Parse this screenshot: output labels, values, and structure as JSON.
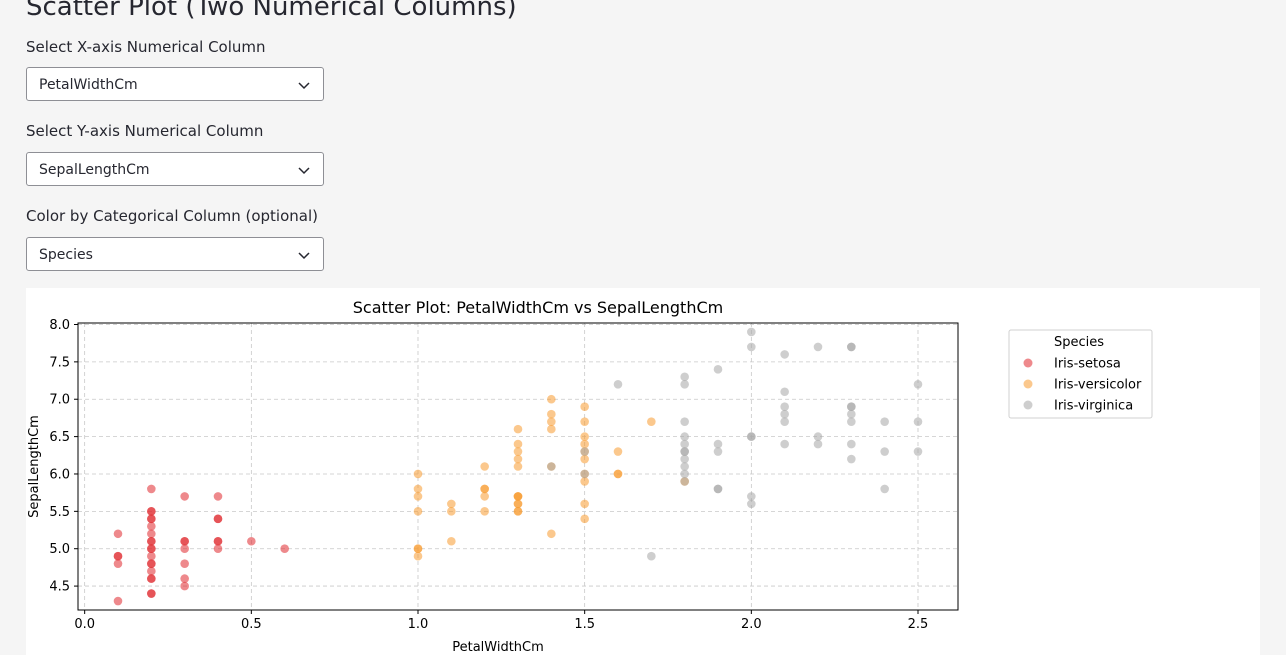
{
  "page": {
    "title": "Scatter Plot (Two Numerical Columns)"
  },
  "controls": {
    "x_select": {
      "label": "Select X-axis Numerical Column",
      "value": "PetalWidthCm"
    },
    "y_select": {
      "label": "Select Y-axis Numerical Column",
      "value": "SepalLengthCm"
    },
    "color_select": {
      "label": "Color by Categorical Column (optional)",
      "value": "Species"
    }
  },
  "icons": {
    "dropdown": "chevron-down-icon"
  },
  "chart_data": {
    "type": "scatter",
    "title": "Scatter Plot: PetalWidthCm vs SepalLengthCm",
    "xlabel": "PetalWidthCm",
    "ylabel": "SepalLengthCm",
    "xlim": [
      -0.02,
      2.62
    ],
    "ylim": [
      4.18,
      8.02
    ],
    "xticks": [
      "0.0",
      "0.5",
      "1.0",
      "1.5",
      "2.0",
      "2.5"
    ],
    "yticks": [
      "4.5",
      "5.0",
      "5.5",
      "6.0",
      "6.5",
      "7.0",
      "7.5",
      "8.0"
    ],
    "grid": true,
    "legend_title": "Species",
    "legend_position": "outside-right",
    "series": [
      {
        "name": "Iris-setosa",
        "color": "#e0282e",
        "points": [
          [
            0.1,
            5.2
          ],
          [
            0.1,
            4.9
          ],
          [
            0.1,
            4.9
          ],
          [
            0.1,
            4.8
          ],
          [
            0.1,
            4.3
          ],
          [
            0.2,
            5.8
          ],
          [
            0.2,
            5.5
          ],
          [
            0.2,
            5.5
          ],
          [
            0.2,
            5.4
          ],
          [
            0.2,
            5.4
          ],
          [
            0.2,
            5.3
          ],
          [
            0.2,
            5.2
          ],
          [
            0.2,
            5.1
          ],
          [
            0.2,
            5.1
          ],
          [
            0.2,
            5.0
          ],
          [
            0.2,
            5.0
          ],
          [
            0.2,
            4.9
          ],
          [
            0.2,
            4.8
          ],
          [
            0.2,
            4.8
          ],
          [
            0.2,
            4.7
          ],
          [
            0.2,
            4.6
          ],
          [
            0.2,
            4.6
          ],
          [
            0.2,
            4.4
          ],
          [
            0.2,
            4.4
          ],
          [
            0.3,
            5.7
          ],
          [
            0.3,
            5.1
          ],
          [
            0.3,
            5.1
          ],
          [
            0.3,
            5.0
          ],
          [
            0.3,
            4.8
          ],
          [
            0.3,
            4.6
          ],
          [
            0.3,
            4.5
          ],
          [
            0.4,
            5.7
          ],
          [
            0.4,
            5.4
          ],
          [
            0.4,
            5.4
          ],
          [
            0.4,
            5.1
          ],
          [
            0.4,
            5.1
          ],
          [
            0.4,
            5.0
          ],
          [
            0.5,
            5.1
          ],
          [
            0.6,
            5.0
          ]
        ]
      },
      {
        "name": "Iris-versicolor",
        "color": "#f79b30",
        "points": [
          [
            1.0,
            6.0
          ],
          [
            1.0,
            5.8
          ],
          [
            1.0,
            5.7
          ],
          [
            1.0,
            5.5
          ],
          [
            1.0,
            5.0
          ],
          [
            1.0,
            5.0
          ],
          [
            1.0,
            4.9
          ],
          [
            1.1,
            5.6
          ],
          [
            1.1,
            5.5
          ],
          [
            1.1,
            5.1
          ],
          [
            1.2,
            6.1
          ],
          [
            1.2,
            5.8
          ],
          [
            1.2,
            5.8
          ],
          [
            1.2,
            5.7
          ],
          [
            1.2,
            5.5
          ],
          [
            1.3,
            6.6
          ],
          [
            1.3,
            6.4
          ],
          [
            1.3,
            6.3
          ],
          [
            1.3,
            6.2
          ],
          [
            1.3,
            6.1
          ],
          [
            1.3,
            5.7
          ],
          [
            1.3,
            5.7
          ],
          [
            1.3,
            5.7
          ],
          [
            1.3,
            5.6
          ],
          [
            1.3,
            5.6
          ],
          [
            1.3,
            5.5
          ],
          [
            1.3,
            5.5
          ],
          [
            1.4,
            7.0
          ],
          [
            1.4,
            6.8
          ],
          [
            1.4,
            6.7
          ],
          [
            1.4,
            6.6
          ],
          [
            1.4,
            6.1
          ],
          [
            1.4,
            5.2
          ],
          [
            1.5,
            6.9
          ],
          [
            1.5,
            6.7
          ],
          [
            1.5,
            6.5
          ],
          [
            1.5,
            6.4
          ],
          [
            1.5,
            6.3
          ],
          [
            1.5,
            6.2
          ],
          [
            1.5,
            6.0
          ],
          [
            1.5,
            5.9
          ],
          [
            1.5,
            5.6
          ],
          [
            1.5,
            5.4
          ],
          [
            1.6,
            6.3
          ],
          [
            1.6,
            6.0
          ],
          [
            1.6,
            6.0
          ],
          [
            1.7,
            6.7
          ],
          [
            1.8,
            5.9
          ]
        ]
      },
      {
        "name": "Iris-virginica",
        "color": "#a6a6a6",
        "points": [
          [
            1.4,
            6.1
          ],
          [
            1.5,
            6.3
          ],
          [
            1.5,
            6.0
          ],
          [
            1.6,
            7.2
          ],
          [
            1.7,
            4.9
          ],
          [
            1.8,
            7.3
          ],
          [
            1.8,
            7.2
          ],
          [
            1.8,
            6.7
          ],
          [
            1.8,
            6.5
          ],
          [
            1.8,
            6.4
          ],
          [
            1.8,
            6.3
          ],
          [
            1.8,
            6.3
          ],
          [
            1.8,
            6.2
          ],
          [
            1.8,
            6.1
          ],
          [
            1.8,
            6.0
          ],
          [
            1.8,
            5.9
          ],
          [
            1.9,
            7.4
          ],
          [
            1.9,
            6.4
          ],
          [
            1.9,
            6.3
          ],
          [
            1.9,
            5.8
          ],
          [
            1.9,
            5.8
          ],
          [
            2.0,
            7.9
          ],
          [
            2.0,
            7.7
          ],
          [
            2.0,
            6.5
          ],
          [
            2.0,
            6.5
          ],
          [
            2.0,
            5.7
          ],
          [
            2.0,
            5.6
          ],
          [
            2.1,
            7.6
          ],
          [
            2.1,
            7.1
          ],
          [
            2.1,
            6.9
          ],
          [
            2.1,
            6.8
          ],
          [
            2.1,
            6.7
          ],
          [
            2.1,
            6.4
          ],
          [
            2.2,
            7.7
          ],
          [
            2.2,
            6.5
          ],
          [
            2.2,
            6.4
          ],
          [
            2.3,
            7.7
          ],
          [
            2.3,
            7.7
          ],
          [
            2.3,
            6.9
          ],
          [
            2.3,
            6.9
          ],
          [
            2.3,
            6.8
          ],
          [
            2.3,
            6.7
          ],
          [
            2.3,
            6.4
          ],
          [
            2.3,
            6.2
          ],
          [
            2.4,
            6.7
          ],
          [
            2.4,
            6.3
          ],
          [
            2.4,
            5.8
          ],
          [
            2.5,
            7.2
          ],
          [
            2.5,
            6.7
          ],
          [
            2.5,
            6.3
          ]
        ]
      }
    ]
  }
}
